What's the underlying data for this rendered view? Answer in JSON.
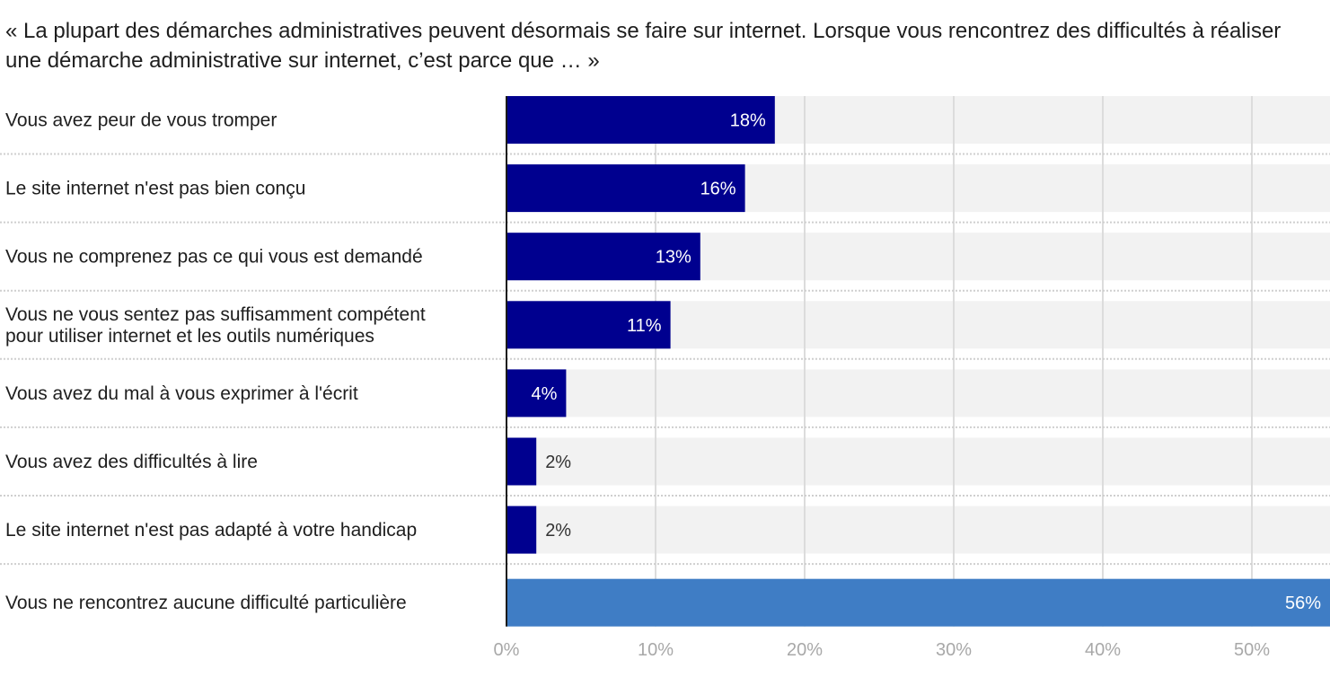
{
  "chart_data": {
    "type": "bar",
    "orientation": "horizontal",
    "title": "« La plupart des démarches administratives peuvent désormais se faire sur internet. Lorsque vous rencontrez des difficultés à réaliser une démarche administrative sur internet, c’est parce que … »",
    "xlabel": "",
    "ylabel": "",
    "xlim": [
      0,
      55.3
    ],
    "grid": true,
    "categories": [
      [
        "Vous avez peur de vous tromper"
      ],
      [
        "Le site internet n'est pas bien conçu"
      ],
      [
        "Vous ne comprenez pas ce qui vous est demandé"
      ],
      [
        "Vous ne vous sentez pas suffisamment compétent",
        "pour utiliser internet et les outils numériques"
      ],
      [
        "Vous avez du mal à vous exprimer à l'écrit"
      ],
      [
        "Vous avez des difficultés à lire"
      ],
      [
        "Le site internet n'est pas adapté à votre handicap"
      ],
      [
        "Vous ne rencontrez aucune difficulté particulière"
      ]
    ],
    "values": [
      18,
      16,
      13,
      11,
      4,
      2,
      2,
      56
    ],
    "value_labels": [
      "18%",
      "16%",
      "13%",
      "11%",
      "4%",
      "2%",
      "2%",
      "56%"
    ],
    "bar_colors": [
      "#00008f",
      "#00008f",
      "#00008f",
      "#00008f",
      "#00008f",
      "#00008f",
      "#00008f",
      "#3f7dc5"
    ],
    "background_bar_color": "#f2f2f2",
    "x_ticks": [
      0,
      10,
      20,
      30,
      40,
      50
    ],
    "x_tick_labels": [
      "0%",
      "10%",
      "20%",
      "30%",
      "40%",
      "50%"
    ]
  }
}
